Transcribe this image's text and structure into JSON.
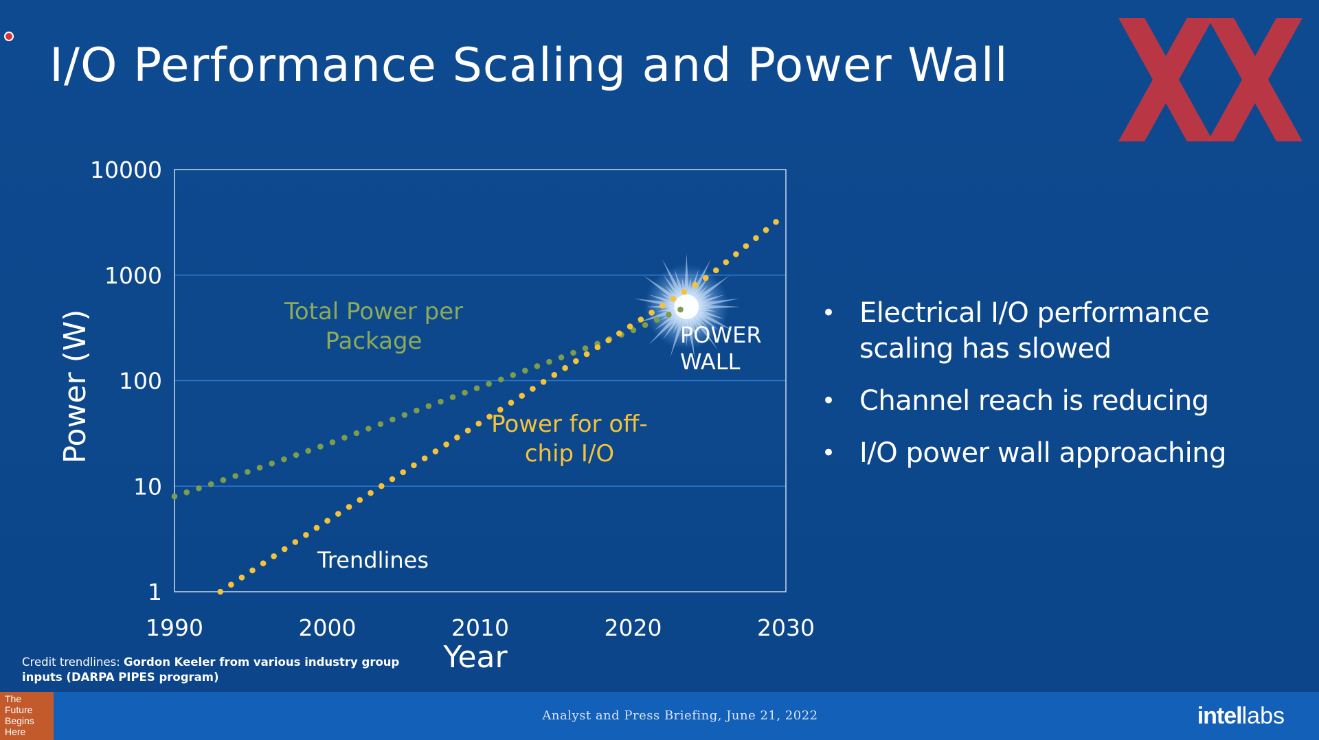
{
  "slide": {
    "title": "I/O Performance Scaling and Power Wall",
    "bullets": [
      "Electrical I/O performance scaling has slowed",
      "Channel reach is reducing",
      "I/O power wall approaching"
    ],
    "bullet_marker": "•",
    "credit_prefix": "Credit trendlines: ",
    "credit_body": "Gordon Keeler from various industry group inputs (DARPA PIPES program)",
    "logo_icon": "xx-logo-icon"
  },
  "footer": {
    "tagline": "The\nFuture\nBegins\nHere",
    "event": "Analyst and Press Briefing, June 21, 2022",
    "brand_bold": "intel",
    "brand_light": "labs"
  },
  "colors": {
    "background": "#0c4589",
    "footer": "#1360b8",
    "total_power": "#7c9c4e",
    "total_power_label": "#8cab58",
    "io_power": "#f4c33a",
    "gridline": "#2d7ad2",
    "logo": "#c8363f",
    "tagline": "#c25a2c"
  },
  "chart_data": {
    "type": "scatter",
    "title": "",
    "xlabel": "Year",
    "ylabel": "Power (W)",
    "x_scale": "linear",
    "y_scale": "log",
    "xlim": [
      1990,
      2030
    ],
    "ylim": [
      1,
      10000
    ],
    "xticks": [
      "1990",
      "2000",
      "2010",
      "2020",
      "2030"
    ],
    "yticks": [
      "1",
      "10",
      "100",
      "1000",
      "10000"
    ],
    "grid": "horizontal at 10, 100 and 1000",
    "legend": "none",
    "series": [
      {
        "name": "Total Power per Package",
        "label_lines": [
          "Total Power per",
          "Package"
        ],
        "x": [
          1990,
          1995,
          2000,
          2005,
          2010,
          2015,
          2020,
          2023.5
        ],
        "values": [
          8,
          14,
          25,
          47,
          87,
          160,
          300,
          500
        ]
      },
      {
        "name": "Power for off-chip I/O",
        "label_lines": [
          "Power for off-",
          "chip I/O"
        ],
        "x": [
          1993,
          2000,
          2005,
          2010,
          2015,
          2020,
          2025,
          2030
        ],
        "values": [
          1,
          4.7,
          13.7,
          40,
          117,
          340,
          990,
          3800
        ]
      }
    ],
    "annotations": {
      "power_wall_lines": [
        "POWER",
        "WALL"
      ],
      "power_wall_at": {
        "x": 2023.5,
        "y": 500
      },
      "trendlines": "Trendlines"
    }
  }
}
